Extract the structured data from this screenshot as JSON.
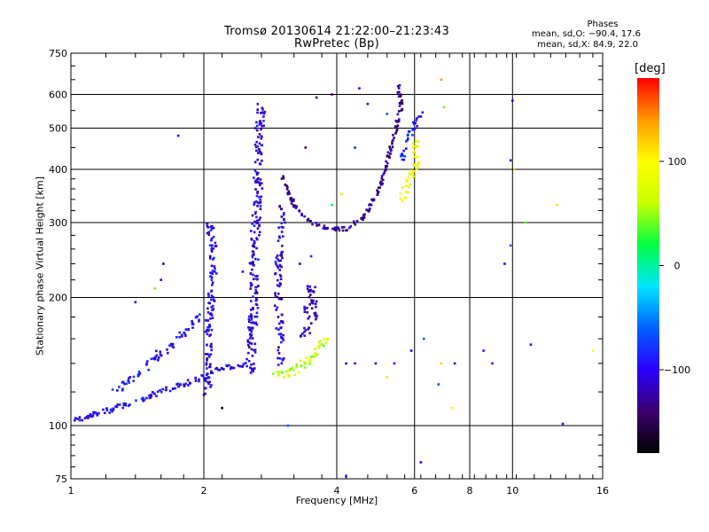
{
  "figure": {
    "title_line1": "Tromsø 20130614 21:22:00–21:23:43",
    "title_line2": "RwPretec (Bp)"
  },
  "phases_box": {
    "heading": "Phases",
    "line_o": "mean, sd,O:  −90.4, 17.6",
    "line_x": "mean, sd,X:  84.9, 22.0"
  },
  "chart_data": {
    "type": "scatter",
    "title": "Tromsø 20130614 21:22:00–21:23:43",
    "subtitle": "RwPretec (Bp)",
    "xlabel": "Frequency [MHz]",
    "ylabel": "Stationary phase Virtual Height [km]",
    "x_scale": "log",
    "y_scale": "log",
    "xlim": [
      1,
      16
    ],
    "ylim": [
      75,
      750
    ],
    "x_ticks": [
      1,
      2,
      4,
      6,
      8,
      10,
      16
    ],
    "y_ticks": [
      75,
      100,
      200,
      300,
      400,
      500,
      600,
      750
    ],
    "grid": true,
    "color_by": "phase (deg)",
    "traces": [
      {
        "name": "low-layer trace",
        "phase": -100,
        "spread": 3,
        "density": 6,
        "points": [
          [
            1.0,
            103
          ],
          [
            1.2,
            108
          ],
          [
            1.4,
            114
          ],
          [
            1.6,
            120
          ],
          [
            1.8,
            125
          ],
          [
            2.0,
            130
          ],
          [
            2.2,
            136
          ],
          [
            2.5,
            140
          ]
        ]
      },
      {
        "name": "lower E echoes",
        "phase": -95,
        "spread": 4,
        "density": 5,
        "points": [
          [
            1.25,
            120
          ],
          [
            1.4,
            130
          ],
          [
            1.55,
            145
          ],
          [
            1.7,
            155
          ],
          [
            1.85,
            170
          ],
          [
            2.0,
            185
          ]
        ]
      },
      {
        "name": "column 2.2",
        "phase": -100,
        "spread": 4,
        "density": 6,
        "points": [
          [
            2.05,
            120
          ],
          [
            2.05,
            170
          ],
          [
            2.1,
            220
          ],
          [
            2.1,
            270
          ],
          [
            2.05,
            300
          ]
        ]
      },
      {
        "name": "column 2.6",
        "phase": -105,
        "spread": 5,
        "density": 7,
        "points": [
          [
            2.55,
            130
          ],
          [
            2.6,
            200
          ],
          [
            2.6,
            260
          ],
          [
            2.65,
            330
          ],
          [
            2.65,
            420
          ],
          [
            2.7,
            560
          ]
        ]
      },
      {
        "name": "column 3.0",
        "phase": -110,
        "spread": 4,
        "density": 5,
        "points": [
          [
            3.0,
            140
          ],
          [
            2.95,
            190
          ],
          [
            2.95,
            240
          ],
          [
            3.0,
            290
          ],
          [
            3.0,
            330
          ]
        ]
      },
      {
        "name": "F-trace o-mode",
        "phase": -130,
        "spread": 2,
        "density": 6,
        "points": [
          [
            3.0,
            390
          ],
          [
            3.2,
            330
          ],
          [
            3.5,
            300
          ],
          [
            3.8,
            290
          ],
          [
            4.2,
            290
          ],
          [
            4.6,
            310
          ],
          [
            5.0,
            360
          ],
          [
            5.2,
            420
          ],
          [
            5.4,
            480
          ],
          [
            5.6,
            560
          ],
          [
            5.5,
            640
          ]
        ]
      },
      {
        "name": "F-trace upper",
        "phase": -90,
        "spread": 3,
        "density": 5,
        "points": [
          [
            5.6,
            420
          ],
          [
            5.8,
            470
          ],
          [
            6.0,
            510
          ],
          [
            6.2,
            550
          ]
        ]
      },
      {
        "name": "x-mode trace",
        "phase": 85,
        "spread": 4,
        "density": 6,
        "points": [
          [
            5.6,
            340
          ],
          [
            5.8,
            370
          ],
          [
            6.0,
            400
          ],
          [
            6.1,
            430
          ],
          [
            6.0,
            470
          ]
        ]
      },
      {
        "name": "sporadic low",
        "phase": 60,
        "spread": 5,
        "density": 7,
        "points": [
          [
            2.9,
            130
          ],
          [
            3.1,
            133
          ],
          [
            3.3,
            138
          ],
          [
            3.5,
            143
          ],
          [
            3.6,
            148
          ],
          [
            3.7,
            155
          ],
          [
            3.8,
            160
          ]
        ]
      },
      {
        "name": "mid scatter",
        "phase": -120,
        "spread": 5,
        "density": 5,
        "points": [
          [
            3.3,
            160
          ],
          [
            3.5,
            175
          ],
          [
            3.6,
            190
          ],
          [
            3.5,
            210
          ],
          [
            3.4,
            180
          ]
        ]
      }
    ],
    "sparse_points": [
      [
        1.75,
        480,
        -110
      ],
      [
        2.45,
        230,
        -100
      ],
      [
        3.9,
        330,
        20
      ],
      [
        4.1,
        350,
        60
      ],
      [
        4.4,
        450,
        -80
      ],
      [
        4.5,
        620,
        -100
      ],
      [
        5.2,
        540,
        -60
      ],
      [
        6.9,
        650,
        140
      ],
      [
        7.0,
        560,
        40
      ],
      [
        10.0,
        580,
        -110
      ],
      [
        9.9,
        420,
        -120
      ],
      [
        10.1,
        400,
        130
      ],
      [
        9.9,
        265,
        -60
      ],
      [
        10.7,
        300,
        40
      ],
      [
        9.6,
        240,
        -100
      ],
      [
        12.6,
        330,
        60
      ],
      [
        13.0,
        101,
        -100
      ],
      [
        15.2,
        150,
        100
      ],
      [
        11.0,
        155,
        -110
      ],
      [
        8.6,
        150,
        -90
      ],
      [
        9.0,
        140,
        -90
      ],
      [
        7.4,
        140,
        -110
      ],
      [
        6.9,
        140,
        120
      ],
      [
        6.8,
        125,
        -70
      ],
      [
        6.2,
        82,
        -100
      ],
      [
        7.3,
        110,
        80
      ],
      [
        6.3,
        160,
        -60
      ],
      [
        5.9,
        150,
        -120
      ],
      [
        5.4,
        140,
        -100
      ],
      [
        4.9,
        140,
        -120
      ],
      [
        4.2,
        140,
        -110
      ],
      [
        4.4,
        140,
        -100
      ],
      [
        5.2,
        130,
        60
      ],
      [
        3.6,
        180,
        -100
      ],
      [
        2.0,
        118,
        -120
      ],
      [
        2.2,
        110,
        -180
      ],
      [
        1.55,
        210,
        40
      ],
      [
        1.6,
        220,
        -100
      ],
      [
        1.4,
        195,
        -120
      ],
      [
        1.62,
        240,
        -140
      ],
      [
        3.3,
        240,
        -120
      ],
      [
        3.5,
        250,
        -80
      ],
      [
        3.4,
        450,
        -140
      ],
      [
        3.6,
        590,
        -140
      ],
      [
        3.9,
        600,
        -140
      ],
      [
        4.7,
        570,
        -120
      ],
      [
        3.1,
        100,
        -60
      ],
      [
        4.2,
        76,
        -100
      ]
    ]
  },
  "colorbar": {
    "label": "[deg]",
    "min": -180,
    "max": 180,
    "ticks": [
      {
        "value": 100,
        "label": "100"
      },
      {
        "value": 0,
        "label": "0"
      },
      {
        "value": -100,
        "label": "−100"
      }
    ],
    "colors": [
      "#000000",
      "#3c006e",
      "#2a00ff",
      "#0060ff",
      "#00e6ff",
      "#00ff40",
      "#c8ff00",
      "#ffff00",
      "#ff9a00",
      "#ff0000"
    ]
  }
}
